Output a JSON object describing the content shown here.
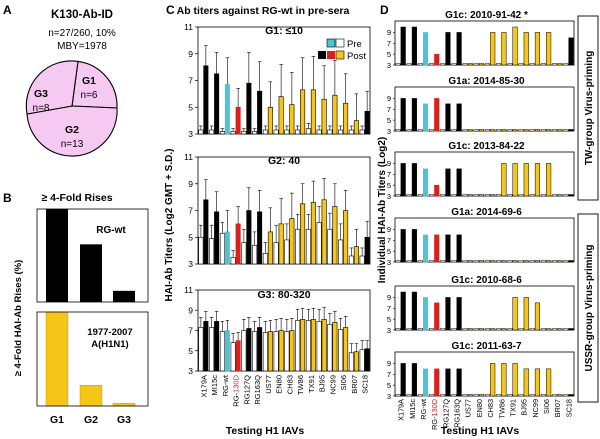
{
  "panel_letters": {
    "a": "A",
    "b": "B",
    "c": "C",
    "d": "D"
  },
  "panel_a": {
    "title": "K130-Ab-ID",
    "line1": "n=27/260, 10%",
    "line2": "MBY=1978",
    "slices": [
      {
        "group": "G1",
        "n": "n=6"
      },
      {
        "group": "G3",
        "n": "n=8"
      },
      {
        "group": "G2",
        "n": "n=13"
      }
    ]
  },
  "panel_b": {
    "title": "≥ 4-Fold Rises",
    "ylabel": "≥ 4-Fold HAI-Ab Rises (%)",
    "top_label": "RG-wt",
    "bottom_label_1": "1977-2007",
    "bottom_label_2": "A(H1N1)",
    "x_ticks": [
      "G1",
      "G2",
      "G3"
    ]
  },
  "panel_c": {
    "title": "Ab titers against RG-wt in pre-sera",
    "legend": {
      "pre": "Pre",
      "post": "Post"
    },
    "subpanel_titles": [
      "G1: ≤10",
      "G2: 40",
      "G3: 80-320"
    ],
    "ylabel": "HAI-Ab Titers (Log2 GMT + S.D.)",
    "xlabel": "Testing H1 IAVs",
    "y_ticks": [
      "3",
      "5",
      "7",
      "9",
      "11"
    ]
  },
  "panel_d": {
    "ylabel": "Individual HAI-Ab Titers (Log2)",
    "xlabel": "Testing H1 IAVs",
    "subpanel_titles": [
      "G1c: 2010-91-42 *",
      "G1a: 2014-85-30",
      "G1c: 2013-84-22",
      "G1a: 2014-69-6",
      "G1c: 2010-68-6",
      "G1c: 2011-63-7"
    ],
    "side_label_tw": "TW-group Virus-priming",
    "side_label_ussr": "USSR-group Virus-priming",
    "y_ticks": [
      "3",
      "5",
      "7",
      "9"
    ]
  },
  "viruses": [
    "X179A",
    "MI15c",
    "RG-wt",
    "RG-130D",
    "RG127Q",
    "RG163Q",
    "US77",
    "EN80",
    "CH83",
    "TW86",
    "TX91",
    "BJ95",
    "NC99",
    "SI06",
    "BR07",
    "SC18"
  ],
  "colors": {
    "pre": "#ffffff",
    "post_black": "#000000",
    "post_cyan": "#4dc3d6",
    "post_red": "#d8201c",
    "post_yellow": "#f5c518",
    "pie_fill": "#f6c9f2",
    "highlight_red": "#d8201c"
  },
  "chart_data": [
    {
      "type": "pie",
      "title": "K130-Ab-ID",
      "labels": [
        "G1",
        "G2",
        "G3"
      ],
      "values": [
        6,
        13,
        8
      ]
    },
    {
      "type": "bar",
      "title": "≥ 4-Fold Rises",
      "subtitle": "RG-wt",
      "categories": [
        "G1",
        "G2",
        "G3"
      ],
      "values": [
        100,
        62,
        12
      ],
      "ylim": [
        0,
        100
      ],
      "ylabel": "≥ 4-Fold HAI-Ab Rises (%)"
    },
    {
      "type": "bar",
      "title": "≥ 4-Fold Rises",
      "subtitle": "1977-2007 A(H1N1)",
      "categories": [
        "G1",
        "G2",
        "G3"
      ],
      "values": [
        100,
        22,
        3
      ],
      "ylim": [
        0,
        100
      ],
      "ylabel": "≥ 4-Fold HAI-Ab Rises (%)"
    },
    {
      "type": "bar",
      "title": "G1: ≤10",
      "ylabel": "HAI-Ab Titers (Log2 GMT + S.D.)",
      "xlabel": "Testing H1 IAVs",
      "ylim": [
        3,
        11
      ],
      "series": [
        {
          "name": "Pre",
          "values": [
            3.3,
            3.3,
            3.2,
            3.2,
            3.2,
            3.2,
            3.3,
            3.3,
            3.3,
            3.3,
            3.4,
            3.3,
            3.3,
            3.3,
            3.3,
            3.3
          ],
          "sd": [
            0.3,
            0.3,
            0.2,
            0.2,
            0.2,
            0.2,
            0.3,
            0.3,
            0.3,
            0.3,
            0.4,
            0.3,
            0.3,
            0.3,
            0.3,
            0.3
          ]
        },
        {
          "name": "Post",
          "values": [
            8.1,
            7.5,
            6.7,
            5.0,
            6.8,
            6.2,
            5.0,
            5.8,
            5.2,
            6.3,
            6.3,
            5.6,
            5.9,
            5.3,
            4.0,
            4.7
          ],
          "sd": [
            1.5,
            1.6,
            2.0,
            1.4,
            2.3,
            2.2,
            1.9,
            2.4,
            2.4,
            2.4,
            2.5,
            2.5,
            2.6,
            2.2,
            2.0,
            1.5
          ]
        }
      ]
    },
    {
      "type": "bar",
      "title": "G2: 40",
      "ylabel": "HAI-Ab Titers (Log2 GMT + S.D.)",
      "xlabel": "Testing H1 IAVs",
      "ylim": [
        3,
        11
      ],
      "series": [
        {
          "name": "Pre",
          "values": [
            5.0,
            4.9,
            5.3,
            3.5,
            4.6,
            4.4,
            3.8,
            4.6,
            4.8,
            5.6,
            5.6,
            6.1,
            5.6,
            4.8,
            3.6,
            3.6
          ],
          "sd": [
            0.9,
            1.0,
            0.8,
            0.5,
            1.0,
            1.0,
            0.8,
            1.3,
            1.2,
            1.1,
            1.1,
            1.2,
            1.2,
            1.2,
            0.6,
            0.6
          ]
        },
        {
          "name": "Post",
          "values": [
            7.8,
            6.9,
            5.4,
            6.0,
            7.0,
            6.9,
            5.4,
            6.0,
            6.4,
            7.5,
            7.6,
            7.8,
            7.3,
            7.0,
            4.3,
            5.0
          ],
          "sd": [
            1.5,
            1.5,
            1.6,
            1.3,
            1.7,
            1.6,
            1.8,
            1.9,
            1.9,
            1.5,
            1.6,
            1.6,
            1.7,
            1.5,
            1.3,
            1.2
          ]
        }
      ]
    },
    {
      "type": "bar",
      "title": "G3: 80-320",
      "ylabel": "HAI-Ab Titers (Log2 GMT + S.D.)",
      "xlabel": "Testing H1 IAVs",
      "ylim": [
        3,
        11
      ],
      "series": [
        {
          "name": "Pre",
          "values": [
            7.3,
            7.3,
            6.9,
            5.8,
            7.0,
            6.9,
            6.8,
            6.9,
            6.9,
            8.0,
            8.0,
            7.9,
            7.6,
            7.1,
            4.8,
            5.1
          ],
          "sd": [
            1.0,
            1.0,
            1.0,
            0.9,
            1.1,
            1.0,
            1.1,
            1.2,
            1.2,
            1.1,
            1.1,
            1.2,
            1.1,
            1.1,
            0.9,
            0.9
          ]
        },
        {
          "name": "Post",
          "values": [
            7.9,
            7.9,
            7.0,
            6.0,
            7.2,
            7.3,
            6.9,
            7.0,
            7.0,
            8.1,
            8.1,
            8.1,
            7.8,
            7.3,
            4.9,
            5.2
          ],
          "sd": [
            1.0,
            1.0,
            1.0,
            0.8,
            1.1,
            1.0,
            1.1,
            1.2,
            1.2,
            1.1,
            1.1,
            1.2,
            1.1,
            1.1,
            0.8,
            0.8
          ]
        }
      ]
    },
    {
      "type": "bar",
      "title": "G1c: 2010-91-42 *",
      "ylabel": "Individual HAI-Ab Titers (Log2)",
      "ylim": [
        3,
        10
      ],
      "series": [
        {
          "name": "Pre",
          "values": [
            3,
            3,
            3,
            3,
            3,
            3,
            3,
            3,
            3,
            3,
            3,
            3,
            3,
            3,
            3,
            3
          ]
        },
        {
          "name": "Post",
          "values": [
            10,
            10,
            9,
            5,
            9,
            9,
            3,
            3,
            9,
            9,
            10,
            9,
            9,
            9,
            3,
            8
          ]
        }
      ]
    },
    {
      "type": "bar",
      "title": "G1a: 2014-85-30",
      "ylabel": "Individual HAI-Ab Titers (Log2)",
      "ylim": [
        3,
        10
      ],
      "series": [
        {
          "name": "Pre",
          "values": [
            3,
            3,
            3,
            3,
            3,
            3,
            3,
            3,
            3,
            3,
            3,
            3,
            3,
            3,
            3,
            3
          ]
        },
        {
          "name": "Post",
          "values": [
            9,
            9,
            8,
            9,
            8,
            8,
            3,
            3,
            3,
            3,
            3,
            3,
            3,
            3,
            3,
            3
          ]
        }
      ]
    },
    {
      "type": "bar",
      "title": "G1c: 2013-84-22",
      "ylabel": "Individual HAI-Ab Titers (Log2)",
      "ylim": [
        3,
        10
      ],
      "series": [
        {
          "name": "Pre",
          "values": [
            3,
            3,
            3,
            3,
            3,
            3,
            3,
            3,
            3,
            3,
            3,
            3,
            3,
            3,
            3,
            3
          ]
        },
        {
          "name": "Post",
          "values": [
            9,
            9,
            8,
            5,
            8,
            8,
            3,
            3,
            3,
            9,
            9,
            9,
            9,
            9,
            3,
            3
          ]
        }
      ]
    },
    {
      "type": "bar",
      "title": "G1a: 2014-69-6",
      "ylabel": "Individual HAI-Ab Titers (Log2)",
      "ylim": [
        3,
        10
      ],
      "series": [
        {
          "name": "Pre",
          "values": [
            3,
            3,
            3,
            3,
            3,
            3,
            3,
            3,
            3,
            3,
            3,
            3,
            3,
            3,
            3,
            3
          ]
        },
        {
          "name": "Post",
          "values": [
            9,
            9,
            8,
            8,
            8,
            8,
            3,
            3,
            3,
            3,
            3,
            3,
            3,
            3,
            3,
            3
          ]
        }
      ]
    },
    {
      "type": "bar",
      "title": "G1c: 2010-68-6",
      "ylabel": "Individual HAI-Ab Titers (Log2)",
      "ylim": [
        3,
        10
      ],
      "series": [
        {
          "name": "Pre",
          "values": [
            3,
            3,
            3,
            3,
            3,
            3,
            3,
            3,
            3,
            3,
            3,
            3,
            3,
            3,
            3,
            3
          ]
        },
        {
          "name": "Post",
          "values": [
            10,
            10,
            9,
            8,
            9,
            9,
            3,
            3,
            3,
            3,
            9,
            9,
            8,
            3,
            3,
            3
          ]
        }
      ]
    },
    {
      "type": "bar",
      "title": "G1c: 2011-63-7",
      "ylabel": "Individual HAI-Ab Titers (Log2)",
      "ylim": [
        3,
        10
      ],
      "series": [
        {
          "name": "Pre",
          "values": [
            3,
            3,
            3,
            3,
            3,
            3,
            3,
            3,
            3,
            3,
            3,
            3,
            3,
            3,
            3,
            3
          ]
        },
        {
          "name": "Post",
          "values": [
            9,
            9,
            8,
            8,
            8,
            8,
            3,
            3,
            9,
            9,
            9,
            8,
            8,
            8,
            3,
            3
          ]
        }
      ]
    }
  ]
}
